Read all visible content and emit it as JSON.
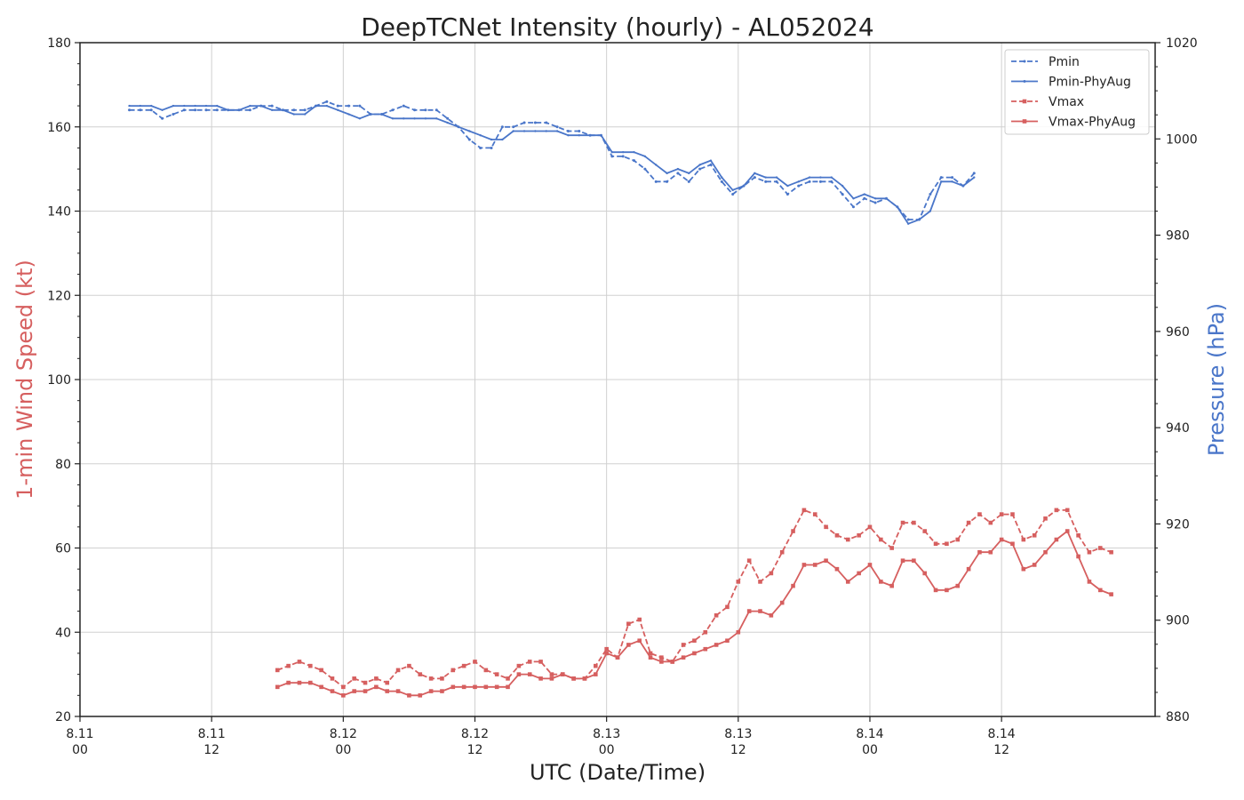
{
  "chart_data": {
    "type": "line",
    "title": "DeepTCNet Intensity (hourly) - AL052024",
    "xlabel": "UTC (Date/Time)",
    "ylabel_left": "1-min Wind Speed (kt)",
    "ylabel_right": "Pressure (hPa)",
    "x_range_hours": [
      0,
      98
    ],
    "x_ticks": [
      {
        "hour": 0,
        "date": "8.11",
        "time": "00"
      },
      {
        "hour": 12,
        "date": "8.11",
        "time": "12"
      },
      {
        "hour": 24,
        "date": "8.12",
        "time": "00"
      },
      {
        "hour": 36,
        "date": "8.12",
        "time": "12"
      },
      {
        "hour": 48,
        "date": "8.13",
        "time": "00"
      },
      {
        "hour": 60,
        "date": "8.13",
        "time": "12"
      },
      {
        "hour": 72,
        "date": "8.14",
        "time": "00"
      },
      {
        "hour": 84,
        "date": "8.14",
        "time": "12"
      }
    ],
    "ylim_left": [
      20,
      180
    ],
    "yticks_left": [
      20,
      40,
      60,
      80,
      100,
      120,
      140,
      160,
      180
    ],
    "ylim_right": [
      880,
      1020
    ],
    "yticks_right": [
      880,
      900,
      920,
      940,
      960,
      980,
      1000,
      1020
    ],
    "grid": true,
    "legend_position": "top-right",
    "colors": {
      "pressure": "#4a76c9",
      "wind": "#d65f5f"
    },
    "series": [
      {
        "name": "Pmin",
        "axis": "right",
        "style": "dashed",
        "marker": "dot",
        "color": "#4a76c9",
        "start_hour": 4.5,
        "values": [
          1006.3,
          1006.0,
          1006.0,
          1004.5,
          1005.5,
          1006.3,
          1006.2,
          1005.8,
          1006.0,
          1005.6,
          1005.8,
          1006.0,
          1006.4,
          1006.8,
          1006.2,
          1005.8,
          1005.6,
          1006.4,
          1007.3,
          1006.6,
          1006.6,
          1007.0,
          1005.8,
          1005.8,
          1006.6,
          1007.0,
          1006.6,
          1005.9,
          1006.1,
          1004.3,
          1003.0,
          1001.0,
          997.5,
          997.5,
          1001.7,
          1001.8,
          1003.0,
          1003.5,
          1003.1,
          1002.0,
          1001.0,
          1000.5,
          999.5,
          999.8,
          993.8,
          993.8,
          993.1,
          991.3,
          988.9,
          988.0,
          990.0,
          988.6,
          991.7,
          992.6,
          988.0,
          985.3,
          987.4,
          990.5,
          988.8,
          989.0,
          985.8,
          988.0,
          989.0,
          989.2,
          988.9,
          986.2,
          983.5,
          985.6,
          984.2,
          985.4,
          983.6,
          981.4,
          982.0,
          987.0,
          991.2,
          992.0,
          990.2,
          993.0
        ],
        "values_kt": [
          164,
          164,
          164,
          162,
          163,
          164,
          164,
          164,
          164,
          164,
          164,
          164,
          165,
          165,
          164,
          164,
          164,
          165,
          166,
          165,
          165,
          165,
          163,
          163,
          164,
          165,
          164,
          164,
          164,
          162,
          160,
          157,
          155,
          155,
          160,
          160,
          161,
          161,
          161,
          160,
          159,
          159,
          158,
          158,
          153,
          153,
          152,
          150,
          147,
          147,
          149,
          147,
          150,
          151,
          147,
          144,
          146,
          148,
          147,
          147,
          144,
          146,
          147,
          147,
          147,
          144,
          141,
          143,
          142,
          143,
          141,
          138,
          138,
          144,
          148,
          148,
          146,
          149
        ]
      },
      {
        "name": "Pmin-PhyAug",
        "axis": "right",
        "style": "solid",
        "marker": "small-dot",
        "color": "#4a76c9",
        "start_hour": 4.5,
        "values_kt": [
          165,
          165,
          165,
          164,
          165,
          165,
          165,
          165,
          165,
          164,
          164,
          165,
          165,
          164,
          164,
          163,
          163,
          165,
          165,
          164,
          163,
          162,
          163,
          163,
          162,
          162,
          162,
          162,
          162,
          161,
          160,
          159,
          158,
          157,
          157,
          159,
          159,
          159,
          159,
          159,
          158,
          158,
          158,
          158,
          154,
          154,
          154,
          153,
          151,
          149,
          150,
          149,
          151,
          152,
          148,
          145,
          146,
          149,
          148,
          148,
          146,
          147,
          148,
          148,
          148,
          146,
          143,
          144,
          143,
          143,
          141,
          137,
          138,
          140,
          147,
          147,
          146,
          148
        ]
      },
      {
        "name": "Vmax",
        "axis": "left",
        "style": "dashed",
        "marker": "square",
        "color": "#d65f5f",
        "start_hour": 18,
        "values": [
          31,
          32,
          33,
          32,
          31,
          29,
          27,
          29,
          28,
          29,
          28,
          31,
          32,
          30,
          29,
          29,
          31,
          32,
          33,
          31,
          30,
          29,
          32,
          33,
          33,
          30,
          30,
          29,
          29,
          32,
          36,
          34,
          42,
          43,
          35,
          34,
          33,
          37,
          38,
          40,
          44,
          46,
          52,
          57,
          52,
          54,
          59,
          64,
          69,
          68,
          65,
          63,
          62,
          63,
          65,
          62,
          60,
          66,
          66,
          64,
          61,
          61,
          62,
          66,
          68,
          66,
          68,
          68,
          62,
          63,
          67,
          69,
          69,
          63,
          59,
          60,
          59
        ],
        "values_shown": [
          31,
          32,
          33,
          32,
          31,
          29,
          27,
          29,
          28,
          29,
          28,
          31,
          32,
          30,
          29,
          29,
          31,
          32,
          33,
          31,
          30,
          29,
          32,
          33,
          33,
          30,
          30,
          29,
          29,
          32,
          36,
          34,
          42,
          43,
          35,
          34,
          33,
          37,
          38,
          40,
          44,
          46,
          52,
          57,
          52,
          54,
          59,
          64,
          69,
          68,
          65,
          63,
          62,
          63,
          65,
          62,
          60,
          66,
          66,
          64,
          61,
          61,
          62,
          66,
          68,
          66,
          68,
          68,
          62,
          63,
          67,
          69,
          69,
          63,
          59,
          60,
          59
        ]
      },
      {
        "name": "Vmax-PhyAug",
        "axis": "left",
        "style": "solid",
        "marker": "square",
        "color": "#d65f5f",
        "start_hour": 18,
        "values": [
          27,
          28,
          28,
          28,
          27,
          26,
          25,
          26,
          26,
          27,
          26,
          26,
          25,
          25,
          26,
          26,
          27,
          27,
          27,
          27,
          27,
          27,
          30,
          30,
          29,
          29,
          30,
          29,
          29,
          30,
          35,
          34,
          37,
          38,
          34,
          33,
          33,
          34,
          35,
          36,
          37,
          38,
          40,
          45,
          45,
          44,
          47,
          51,
          56,
          56,
          57,
          55,
          52,
          54,
          56,
          52,
          51,
          57,
          57,
          54,
          50,
          50,
          51,
          55,
          59,
          59,
          62,
          61,
          55,
          56,
          59,
          62,
          64,
          58,
          52,
          50,
          49
        ]
      }
    ]
  }
}
